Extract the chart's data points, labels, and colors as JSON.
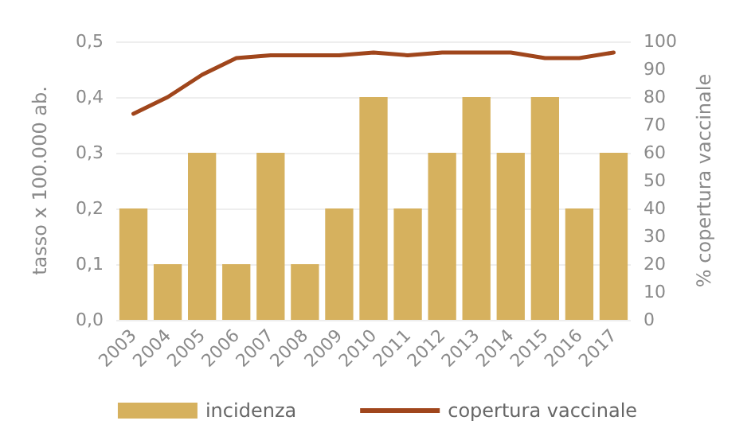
{
  "chart_data": {
    "type": "bar",
    "categories": [
      "2003",
      "2004",
      "2005",
      "2006",
      "2007",
      "2008",
      "2009",
      "2010",
      "2011",
      "2012",
      "2013",
      "2014",
      "2015",
      "2016",
      "2017"
    ],
    "series": [
      {
        "name": "incidenza",
        "color": "#d6b15e",
        "values": [
          0.2,
          0.1,
          0.3,
          0.1,
          0.3,
          0.1,
          0.2,
          0.4,
          0.2,
          0.3,
          0.4,
          0.3,
          0.4,
          0.2,
          0.3
        ]
      },
      {
        "name": "copertura vaccinale",
        "type": "line",
        "axis": "y2",
        "color": "#a0461c",
        "values": [
          74,
          80,
          88,
          94,
          95,
          95,
          95,
          96,
          95,
          96,
          96,
          96,
          94,
          94,
          96
        ]
      }
    ],
    "ylabel": "tasso x 100.000 ab.",
    "y2label": "% copertura vaccinale",
    "ylim": [
      0,
      0.5
    ],
    "yticks": [
      {
        "value": 0,
        "label": "0,0"
      },
      {
        "value": 0.1,
        "label": "0,1"
      },
      {
        "value": 0.2,
        "label": "0,2"
      },
      {
        "value": 0.3,
        "label": "0,3"
      },
      {
        "value": 0.4,
        "label": "0,4"
      },
      {
        "value": 0.5,
        "label": "0,5"
      }
    ],
    "y2lim": [
      0,
      100
    ],
    "y2ticks": [
      0,
      10,
      20,
      30,
      40,
      50,
      60,
      70,
      80,
      90,
      100
    ],
    "grid": "y",
    "legend": "bottom",
    "marker": "none",
    "line_style": "solid"
  }
}
